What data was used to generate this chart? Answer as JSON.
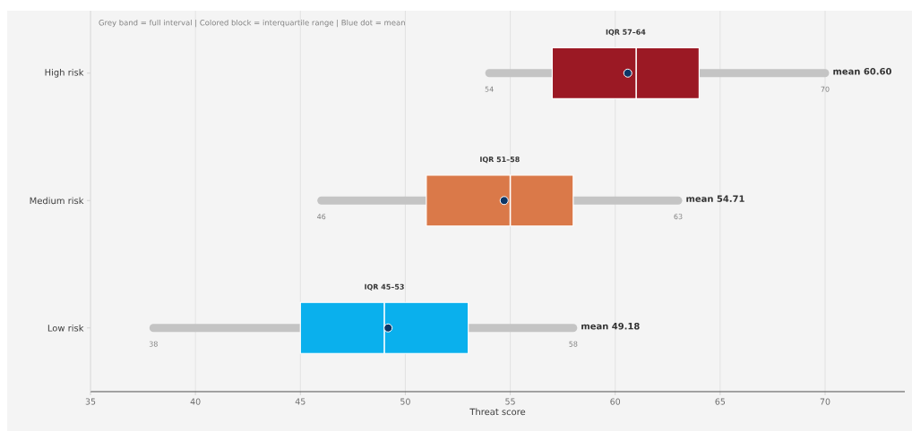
{
  "chart_data": {
    "type": "box",
    "orientation": "horizontal",
    "xlabel": "Threat score",
    "categories": [
      "High risk",
      "Medium risk",
      "Low risk"
    ],
    "colors": [
      "#9b1924",
      "#da7949",
      "#0ab0ed"
    ],
    "boxes": [
      {
        "low": 54,
        "q1": 57,
        "median": 61,
        "q3": 64,
        "high": 70,
        "mean": 60.6
      },
      {
        "low": 46,
        "q1": 51,
        "median": 55,
        "q3": 58,
        "high": 63,
        "mean": 54.71
      },
      {
        "low": 38,
        "q1": 45,
        "median": 49,
        "q3": 53,
        "high": 58,
        "mean": 49.18
      }
    ],
    "xlim": [
      35,
      73.8
    ],
    "xticks": [
      35,
      40,
      45,
      50,
      55,
      60,
      65,
      70
    ],
    "grid": "x",
    "annotations": [
      "Grey band = full interval   |   Colored block = interquartile range   |   Blue dot = mean",
      "IQR 57–64",
      {
        "text": "54",
        "x": 54,
        "y": "High risk"
      },
      {
        "text": "70",
        "x": 70,
        "y": "High risk"
      },
      {
        "text": "mean 60.60",
        "x": 70,
        "y": "High risk"
      },
      "IQR 51–58",
      {
        "text": "46",
        "x": 46,
        "y": "Medium risk"
      },
      {
        "text": "63",
        "x": 63,
        "y": "Medium risk"
      },
      {
        "text": "mean 54.71",
        "x": 63,
        "y": "Medium risk"
      },
      "IQR 45–53",
      {
        "text": "38",
        "x": 38,
        "y": "Low risk"
      },
      {
        "text": "58",
        "x": 58,
        "y": "Low risk"
      },
      {
        "text": "mean 49.18",
        "x": 58,
        "y": "Low risk"
      }
    ]
  }
}
